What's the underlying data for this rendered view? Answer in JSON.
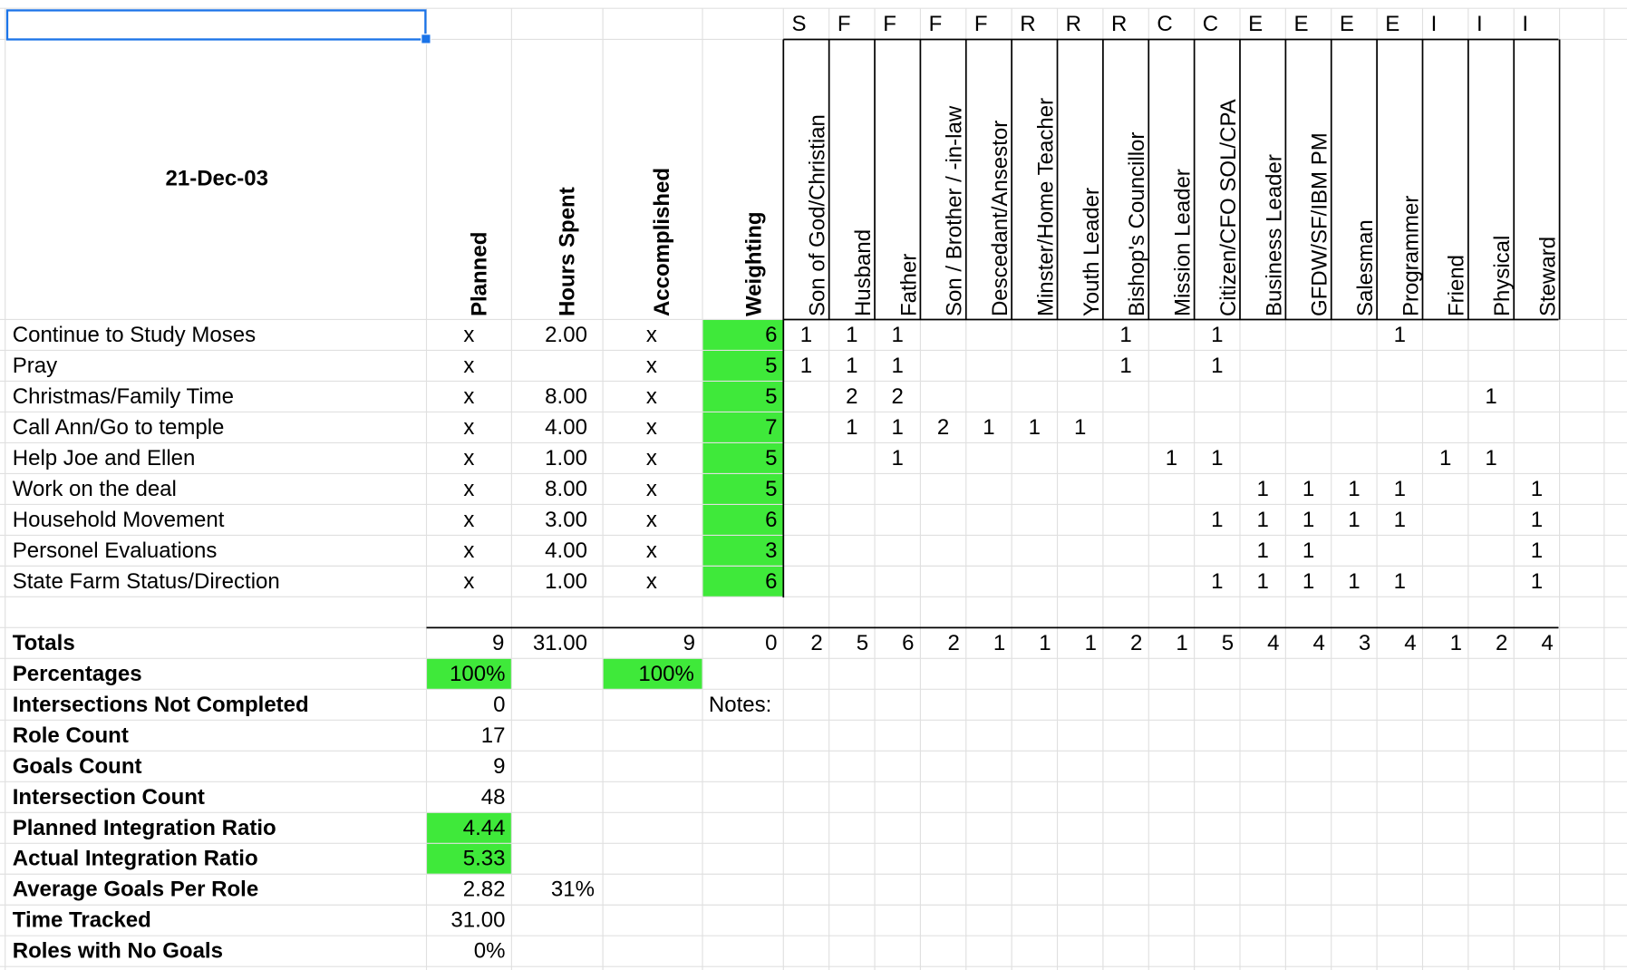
{
  "date": "21-Dec-03",
  "columns": [
    "Planned",
    "Hours Spent",
    "Accomplished",
    "Weighting"
  ],
  "role_letters": [
    "S",
    "F",
    "F",
    "F",
    "F",
    "R",
    "R",
    "R",
    "C",
    "C",
    "E",
    "E",
    "E",
    "E",
    "I",
    "I",
    "I"
  ],
  "roles": [
    "Son of God/Christian",
    "Husband",
    "Father",
    "Son / Brother / -in-law",
    "Descedant/Ansestor",
    "Minster/Home Teacher",
    "Youth Leader",
    "Bishop's Councillor",
    "Mission Leader",
    "Citizen/CFO SOL/CPA",
    "Business Leader",
    "GFDW/SF/IBM PM",
    "Salesman",
    "Programmer",
    "Friend",
    "Physical",
    "Steward"
  ],
  "goals": [
    {
      "name": "Continue to Study Moses",
      "planned": "x",
      "hours": "2.00",
      "accomplished": "x",
      "weighting": "6",
      "roles": [
        "1",
        "1",
        "1",
        null,
        null,
        null,
        null,
        "1",
        null,
        "1",
        null,
        null,
        null,
        "1",
        null,
        null,
        null
      ]
    },
    {
      "name": "Pray",
      "planned": "x",
      "hours": null,
      "accomplished": "x",
      "weighting": "5",
      "roles": [
        "1",
        "1",
        "1",
        null,
        null,
        null,
        null,
        "1",
        null,
        "1",
        null,
        null,
        null,
        null,
        null,
        null,
        null
      ]
    },
    {
      "name": "Christmas/Family Time",
      "planned": "x",
      "hours": "8.00",
      "accomplished": "x",
      "weighting": "5",
      "roles": [
        null,
        "2",
        "2",
        null,
        null,
        null,
        null,
        null,
        null,
        null,
        null,
        null,
        null,
        null,
        null,
        "1",
        null
      ]
    },
    {
      "name": "Call Ann/Go to temple",
      "planned": "x",
      "hours": "4.00",
      "accomplished": "x",
      "weighting": "7",
      "roles": [
        null,
        "1",
        "1",
        "2",
        "1",
        "1",
        "1",
        null,
        null,
        null,
        null,
        null,
        null,
        null,
        null,
        null,
        null
      ]
    },
    {
      "name": "Help Joe and Ellen",
      "planned": "x",
      "hours": "1.00",
      "accomplished": "x",
      "weighting": "5",
      "roles": [
        null,
        null,
        "1",
        null,
        null,
        null,
        null,
        null,
        "1",
        "1",
        null,
        null,
        null,
        null,
        "1",
        "1",
        null
      ]
    },
    {
      "name": "Work on the deal",
      "planned": "x",
      "hours": "8.00",
      "accomplished": "x",
      "weighting": "5",
      "roles": [
        null,
        null,
        null,
        null,
        null,
        null,
        null,
        null,
        null,
        null,
        "1",
        "1",
        "1",
        "1",
        null,
        null,
        "1"
      ]
    },
    {
      "name": "Household Movement",
      "planned": "x",
      "hours": "3.00",
      "accomplished": "x",
      "weighting": "6",
      "roles": [
        null,
        null,
        null,
        null,
        null,
        null,
        null,
        null,
        null,
        "1",
        "1",
        "1",
        "1",
        "1",
        null,
        null,
        "1"
      ]
    },
    {
      "name": "Personel Evaluations",
      "planned": "x",
      "hours": "4.00",
      "accomplished": "x",
      "weighting": "3",
      "roles": [
        null,
        null,
        null,
        null,
        null,
        null,
        null,
        null,
        null,
        null,
        "1",
        "1",
        null,
        null,
        null,
        null,
        "1"
      ]
    },
    {
      "name": "State Farm Status/Direction",
      "planned": "x",
      "hours": "1.00",
      "accomplished": "x",
      "weighting": "6",
      "roles": [
        null,
        null,
        null,
        null,
        null,
        null,
        null,
        null,
        null,
        "1",
        "1",
        "1",
        "1",
        "1",
        null,
        null,
        "1"
      ]
    }
  ],
  "totals": {
    "name": "Totals",
    "planned": "9",
    "hours": "31.00",
    "accomplished": "9",
    "weighting": "0",
    "roles": [
      "2",
      "5",
      "6",
      "2",
      "1",
      "1",
      "1",
      "2",
      "1",
      "5",
      "4",
      "4",
      "3",
      "4",
      "1",
      "2",
      "4"
    ]
  },
  "summary": [
    {
      "name": "Percentages",
      "planned": "100%",
      "accomplished": "100%"
    },
    {
      "name": "Intersections Not Completed",
      "planned": "0",
      "notes": "Notes:"
    },
    {
      "name": "Role Count",
      "planned": "17"
    },
    {
      "name": "Goals Count",
      "planned": "9"
    },
    {
      "name": "Intersection Count",
      "planned": "48"
    },
    {
      "name": "Planned Integration Ratio",
      "planned": "4.44"
    },
    {
      "name": "Actual Integration Ratio",
      "planned": "5.33"
    },
    {
      "name": "Average Goals Per Role",
      "planned": "2.82",
      "hours": "31%"
    },
    {
      "name": "Time Tracked",
      "planned": "31.00"
    },
    {
      "name": "Roles with No Goals",
      "planned": "0%"
    }
  ]
}
